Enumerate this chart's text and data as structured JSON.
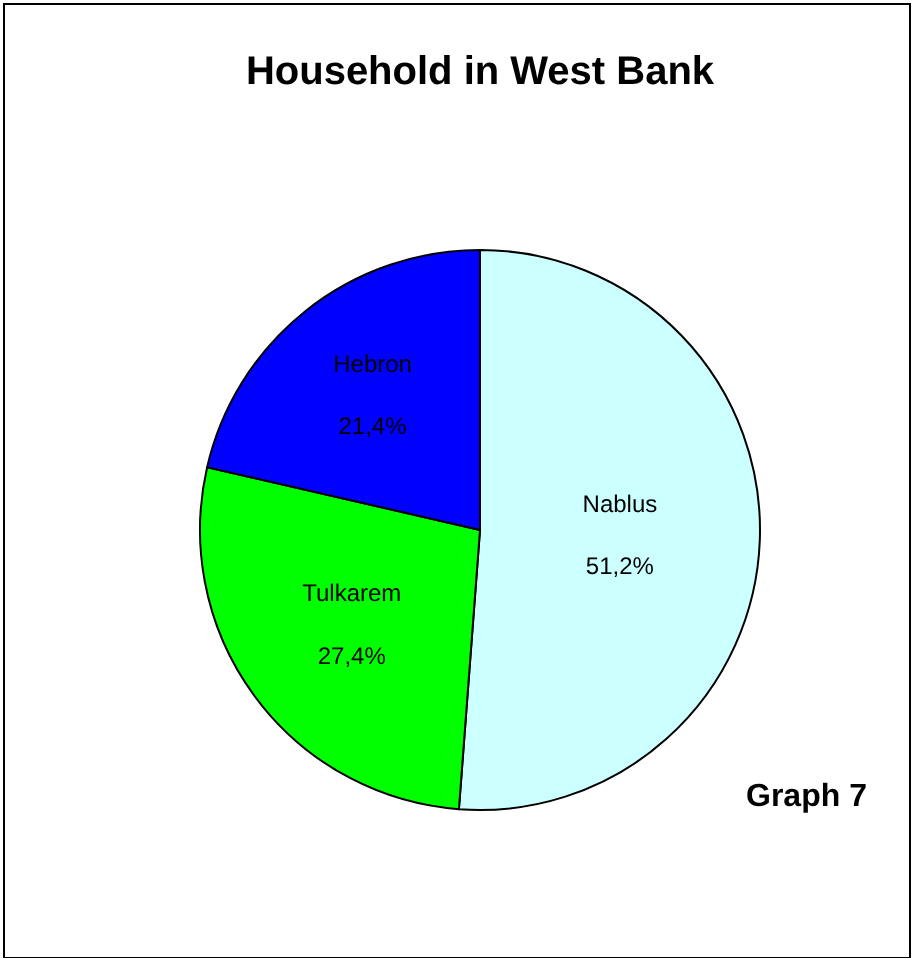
{
  "chart_data": {
    "type": "pie",
    "title": "Household in West Bank",
    "categories": [
      "Nablus",
      "Tulkarem",
      "Hebron"
    ],
    "values": [
      51.2,
      27.4,
      21.4
    ],
    "value_labels": [
      "51,2%",
      "27,4%",
      "21,4%"
    ],
    "colors": [
      "#ccffff",
      "#00ff00",
      "#0000ff"
    ],
    "annotations": [
      "Graph 7"
    ],
    "legend": false
  }
}
